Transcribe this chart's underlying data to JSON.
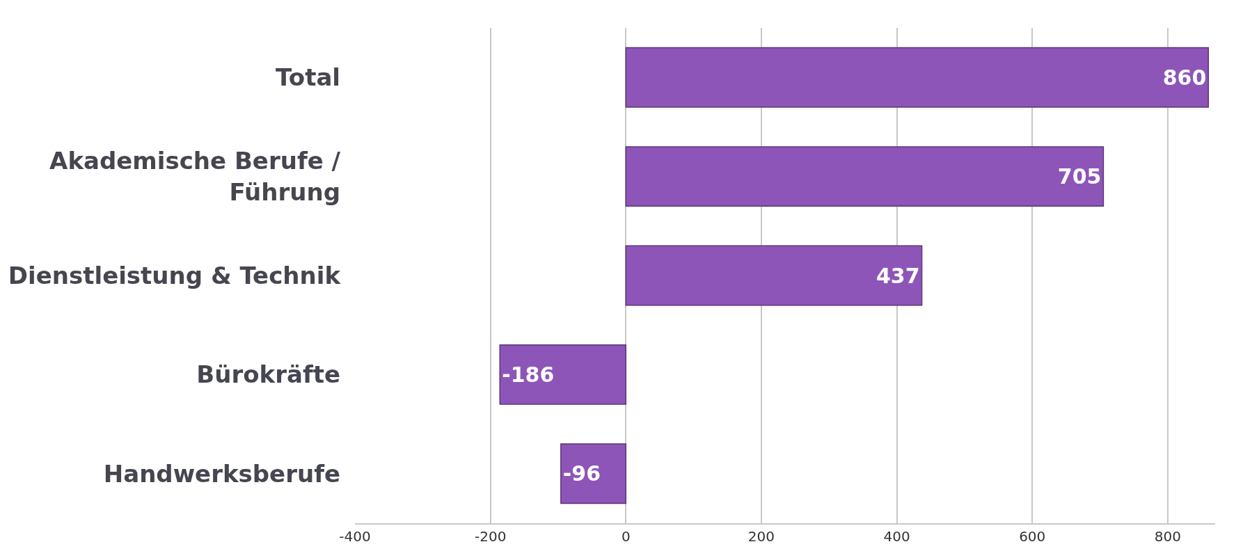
{
  "chart_data": {
    "type": "bar",
    "orientation": "horizontal",
    "categories": [
      "Total",
      "Akademische Berufe / Führung",
      "Dienstleistung & Technik",
      "Bürokräfte",
      "Handwerksberufe"
    ],
    "values": [
      860,
      705,
      437,
      -186,
      -96
    ],
    "color": "#8e55b8",
    "xlim": [
      -400,
      870
    ],
    "xticks": [
      -400,
      -200,
      0,
      200,
      400,
      600,
      800
    ],
    "grid": "x",
    "data_labels": true
  }
}
